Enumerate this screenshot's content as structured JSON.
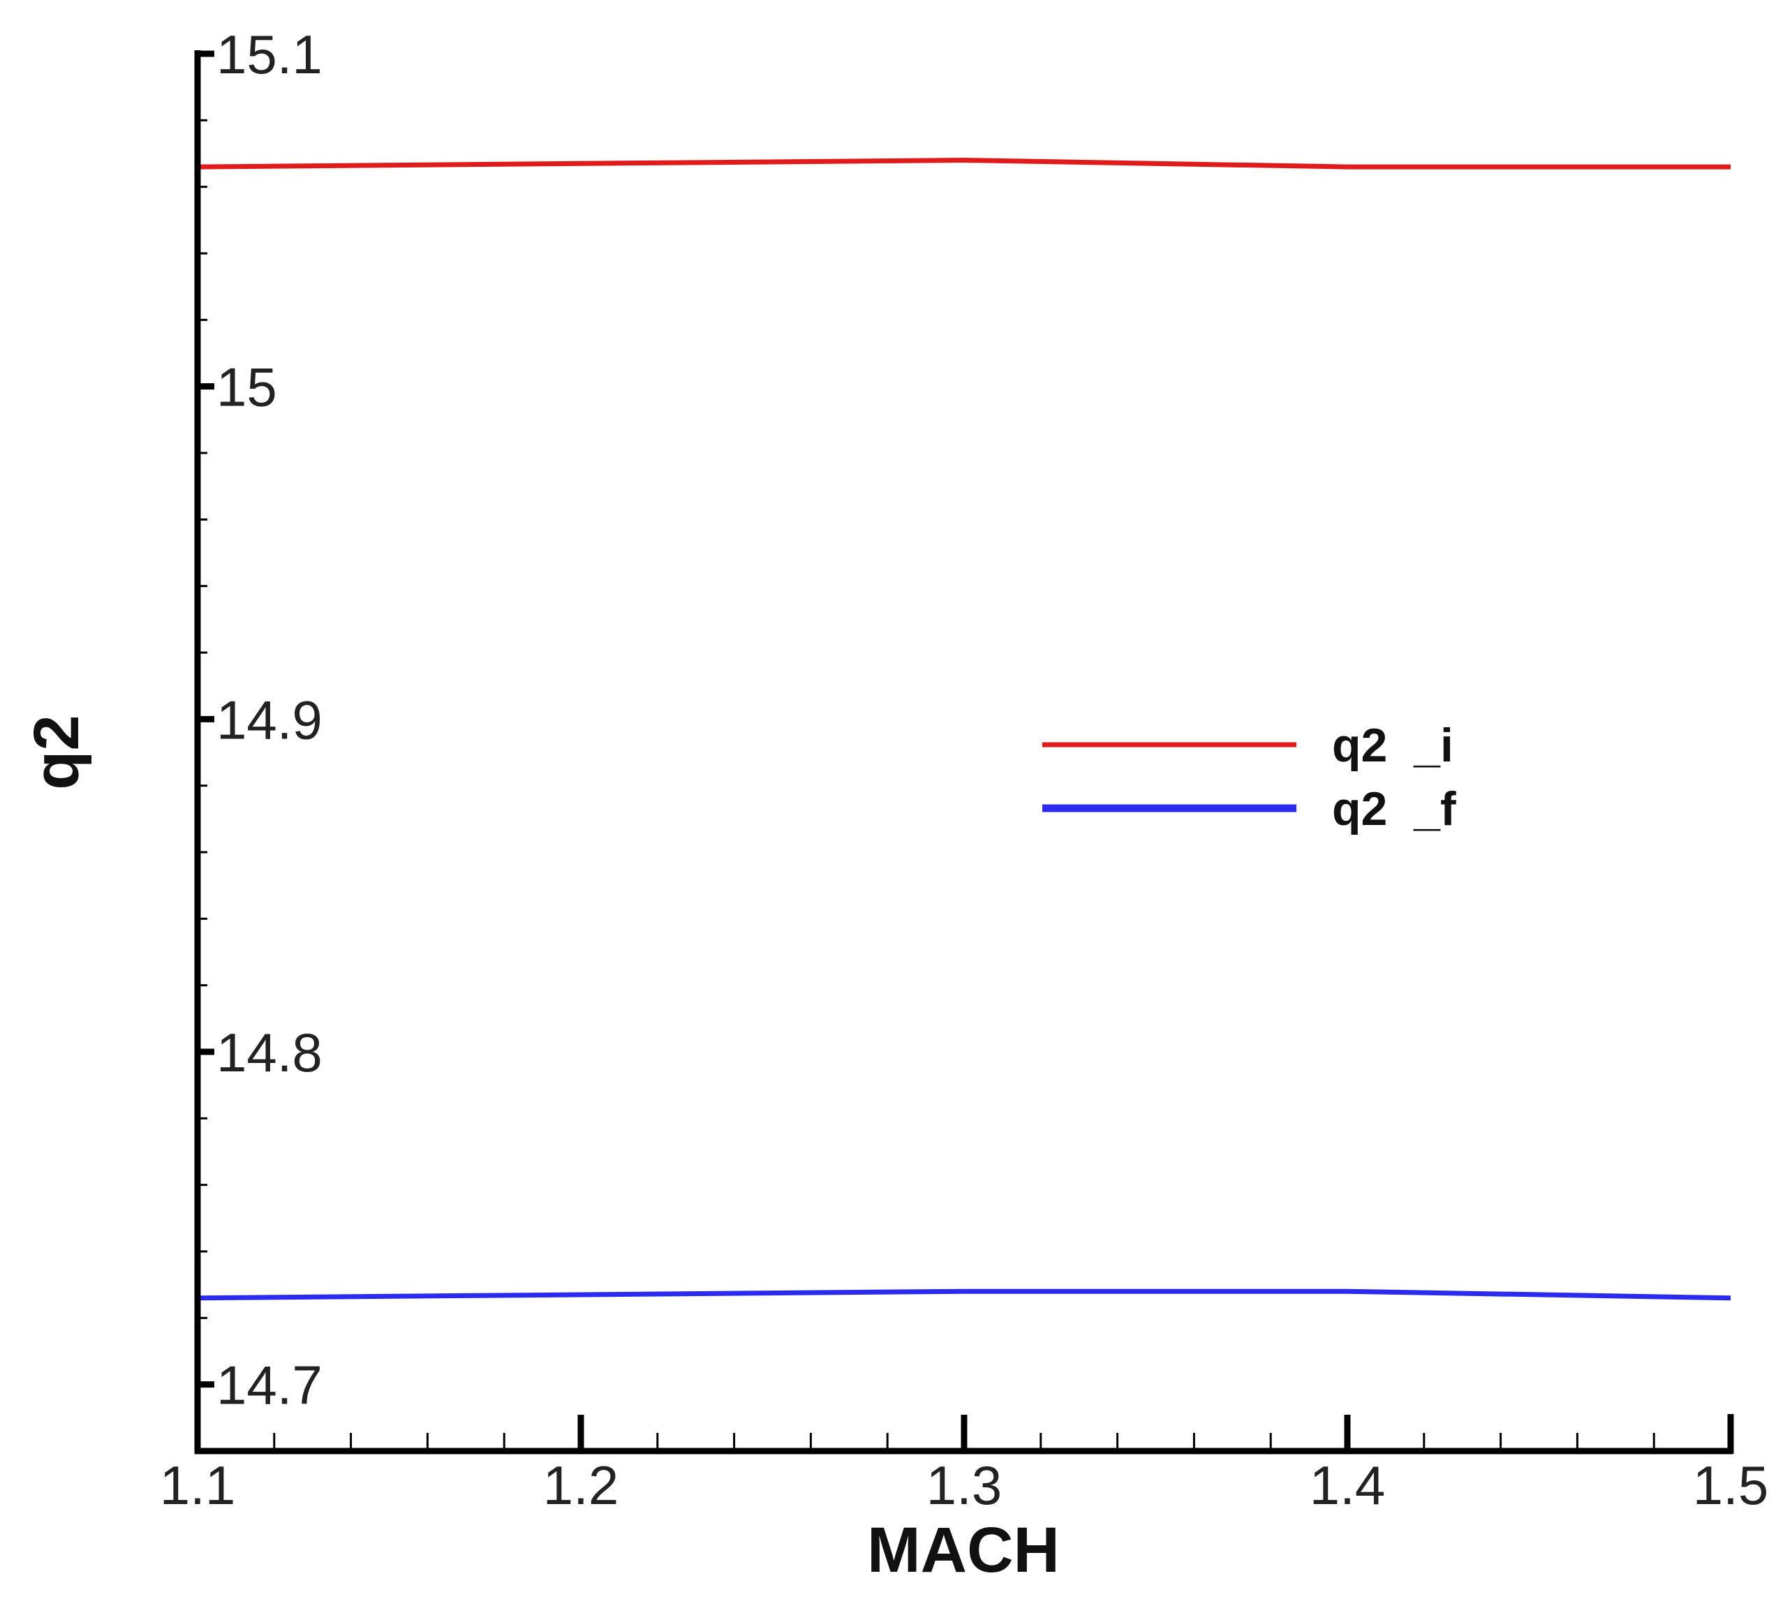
{
  "chart_data": {
    "type": "line",
    "title": "",
    "xlabel": "MACH",
    "ylabel": "q2",
    "xlim": [
      1.1,
      1.5
    ],
    "ylim": [
      14.68,
      15.1
    ],
    "x_ticks": [
      "1.1",
      "1.2",
      "1.3",
      "1.4",
      "1.5"
    ],
    "y_ticks": [
      "14.7",
      "14.8",
      "14.9",
      "15",
      "15.1"
    ],
    "grid": false,
    "legend_position": "center-right",
    "series": [
      {
        "name": "q2  _i",
        "color": "#e01b1b",
        "x": [
          1.1,
          1.2,
          1.3,
          1.4,
          1.5
        ],
        "y": [
          15.066,
          15.067,
          15.068,
          15.066,
          15.066
        ]
      },
      {
        "name": "q2  _f",
        "color": "#2b2bf0",
        "x": [
          1.1,
          1.2,
          1.3,
          1.4,
          1.5
        ],
        "y": [
          14.726,
          14.727,
          14.728,
          14.728,
          14.726
        ]
      }
    ]
  }
}
